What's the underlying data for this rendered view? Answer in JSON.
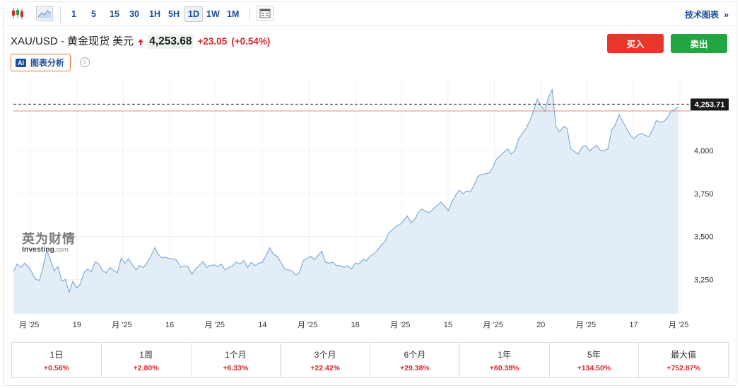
{
  "toolbar": {
    "candles_icon": "candlestick-icon",
    "area_icon": "area-chart-icon",
    "timeframes": [
      {
        "label": "1"
      },
      {
        "label": "5"
      },
      {
        "label": "15"
      },
      {
        "label": "30"
      },
      {
        "label": "1H"
      },
      {
        "label": "5H"
      },
      {
        "label": "1D",
        "active": true
      },
      {
        "label": "1W"
      },
      {
        "label": "1M"
      }
    ],
    "calendar_icon": "calendar-icon",
    "tech_chart_label": "技术图表",
    "tech_chart_arrow": "»"
  },
  "header": {
    "pair": "XAU/USD - 黄金现货 美元",
    "price": "4,253.68",
    "change": "+23.05",
    "change_pct": "(+0.54%)",
    "buy_label": "买入",
    "sell_label": "卖出",
    "ai_badge": "AI",
    "ai_label": "图表分析",
    "info_icon": "i"
  },
  "watermark": {
    "cn": "英为财情",
    "en": "Investing",
    "en_suffix": ".com"
  },
  "colors": {
    "up": "#d8262c",
    "buy": "#e8362d",
    "sell": "#21a641",
    "line": "#7aa7d0",
    "fill": "#e3edf7",
    "link": "#1a4e9c"
  },
  "chart_data": {
    "type": "area",
    "current_value": 4253.71,
    "current_label": "4,253.71",
    "reference_value": 4230.63,
    "ylim": [
      3050,
      4420
    ],
    "y_ticks": [
      {
        "value": 3250,
        "label": "3,250"
      },
      {
        "value": 3500,
        "label": "3,500"
      },
      {
        "value": 3750,
        "label": "3,750"
      },
      {
        "value": 4000,
        "label": "4,000"
      }
    ],
    "x_tick_labels": [
      "月 '25",
      "19",
      "月 '25",
      "16",
      "月 '25",
      "14",
      "月 '25",
      "18",
      "月 '25",
      "15",
      "月 '25",
      "20",
      "月 '25",
      "17",
      "月 '25"
    ],
    "values": [
      3295,
      3340,
      3320,
      3345,
      3325,
      3290,
      3250,
      3245,
      3325,
      3420,
      3360,
      3300,
      3325,
      3240,
      3250,
      3175,
      3240,
      3200,
      3225,
      3290,
      3310,
      3295,
      3355,
      3340,
      3300,
      3290,
      3320,
      3300,
      3290,
      3375,
      3345,
      3370,
      3335,
      3305,
      3330,
      3320,
      3350,
      3385,
      3435,
      3395,
      3375,
      3380,
      3370,
      3370,
      3360,
      3320,
      3330,
      3325,
      3280,
      3310,
      3330,
      3355,
      3320,
      3330,
      3335,
      3325,
      3340,
      3305,
      3320,
      3330,
      3350,
      3340,
      3360,
      3320,
      3350,
      3330,
      3345,
      3350,
      3390,
      3435,
      3395,
      3385,
      3350,
      3310,
      3305,
      3300,
      3275,
      3290,
      3360,
      3370,
      3385,
      3365,
      3390,
      3415,
      3350,
      3345,
      3350,
      3330,
      3330,
      3320,
      3330,
      3310,
      3345,
      3340,
      3365,
      3360,
      3385,
      3400,
      3420,
      3450,
      3470,
      3520,
      3540,
      3560,
      3570,
      3590,
      3620,
      3580,
      3600,
      3640,
      3660,
      3645,
      3640,
      3660,
      3680,
      3700,
      3680,
      3650,
      3700,
      3740,
      3770,
      3750,
      3765,
      3760,
      3800,
      3850,
      3860,
      3865,
      3870,
      3900,
      3950,
      3970,
      3990,
      4010,
      3980,
      4000,
      4070,
      4100,
      4130,
      4175,
      4230,
      4300,
      4260,
      4230,
      4310,
      4355,
      4140,
      4110,
      4140,
      4130,
      4010,
      3995,
      3980,
      4020,
      4030,
      4000,
      4015,
      4030,
      4000,
      4000,
      4010,
      4120,
      4150,
      4210,
      4170,
      4130,
      4090,
      4070,
      4090,
      4100,
      4090,
      4080,
      4120,
      4175,
      4165,
      4170,
      4190,
      4230,
      4240,
      4253.71
    ]
  },
  "performance": [
    {
      "period": "1日",
      "value": "+0.56%"
    },
    {
      "period": "1周",
      "value": "+2.80%"
    },
    {
      "period": "1个月",
      "value": "+6.33%"
    },
    {
      "period": "3个月",
      "value": "+22.42%"
    },
    {
      "period": "6个月",
      "value": "+29.38%"
    },
    {
      "period": "1年",
      "value": "+60.38%"
    },
    {
      "period": "5年",
      "value": "+134.50%"
    },
    {
      "period": "最大值",
      "value": "+752.87%"
    }
  ]
}
